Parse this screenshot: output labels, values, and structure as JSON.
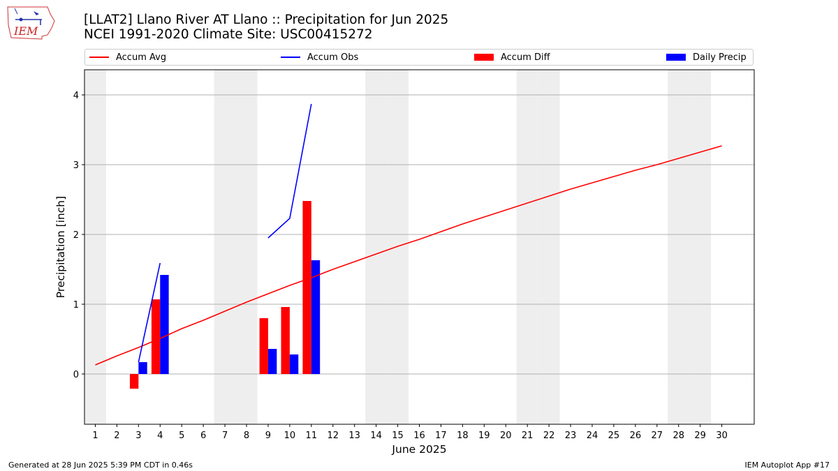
{
  "header": {
    "title_line1": "[LLAT2] Llano River  AT Llano :: Precipitation for Jun 2025",
    "title_line2": "NCEI 1991-2020 Climate Site: USC00415272",
    "logo_text": "IEM"
  },
  "legend": {
    "items": [
      {
        "label": "Accum Avg",
        "color": "#ff0000",
        "kind": "line"
      },
      {
        "label": "Accum Obs",
        "color": "#0000ff",
        "kind": "line"
      },
      {
        "label": "Accum Diff",
        "color": "#ff0000",
        "kind": "patch"
      },
      {
        "label": "Daily Precip",
        "color": "#0000ff",
        "kind": "patch"
      }
    ]
  },
  "footer": {
    "generated": "Generated at 28 Jun 2025 5:39 PM CDT in 0.46s",
    "app": "IEM Autoplot App #17"
  },
  "chart_data": {
    "type": "bar",
    "title": "[LLAT2] Llano River  AT Llano :: Precipitation for Jun 2025",
    "xlabel": "June 2025",
    "ylabel": "Precipitation [inch]",
    "xlim": [
      0.5,
      31.5
    ],
    "ylim": [
      -0.72,
      4.36
    ],
    "x_ticks": [
      1,
      2,
      3,
      4,
      5,
      6,
      7,
      8,
      9,
      10,
      11,
      12,
      13,
      14,
      15,
      16,
      17,
      18,
      19,
      20,
      21,
      22,
      23,
      24,
      25,
      26,
      27,
      28,
      29,
      30
    ],
    "y_ticks": [
      0,
      1,
      2,
      3,
      4
    ],
    "weekend_days": [
      1,
      7,
      8,
      14,
      15,
      21,
      22,
      28,
      29
    ],
    "colors": {
      "avg": "#ff0000",
      "obs": "#0000ff",
      "diff": "#ff0000",
      "daily": "#0000ff",
      "weekend": "#eeeeee",
      "grid": "#b0b0b0"
    },
    "series": [
      {
        "name": "Accum Avg",
        "x": [
          1,
          2,
          3,
          4,
          5,
          6,
          7,
          8,
          9,
          10,
          11,
          12,
          13,
          14,
          15,
          16,
          17,
          18,
          19,
          20,
          21,
          22,
          23,
          24,
          25,
          26,
          27,
          28,
          29,
          30
        ],
        "values": [
          0.13,
          0.26,
          0.38,
          0.51,
          0.65,
          0.77,
          0.9,
          1.03,
          1.15,
          1.27,
          1.38,
          1.5,
          1.61,
          1.72,
          1.83,
          1.93,
          2.04,
          2.15,
          2.25,
          2.35,
          2.45,
          2.55,
          2.65,
          2.74,
          2.83,
          2.92,
          3.0,
          3.09,
          3.18,
          3.27
        ]
      },
      {
        "name": "Accum Obs",
        "segments": [
          {
            "x": [
              3,
              4
            ],
            "values": [
              0.17,
              1.59
            ]
          },
          {
            "x": [
              9,
              10,
              11
            ],
            "values": [
              1.95,
              2.23,
              3.87
            ]
          }
        ]
      },
      {
        "name": "Accum Diff",
        "x": [
          3,
          4,
          9,
          10,
          11
        ],
        "values": [
          -0.21,
          1.07,
          0.8,
          0.96,
          2.48
        ]
      },
      {
        "name": "Daily Precip",
        "x": [
          3,
          4,
          9,
          10,
          11
        ],
        "values": [
          0.17,
          1.42,
          0.36,
          0.28,
          1.63
        ]
      }
    ]
  }
}
